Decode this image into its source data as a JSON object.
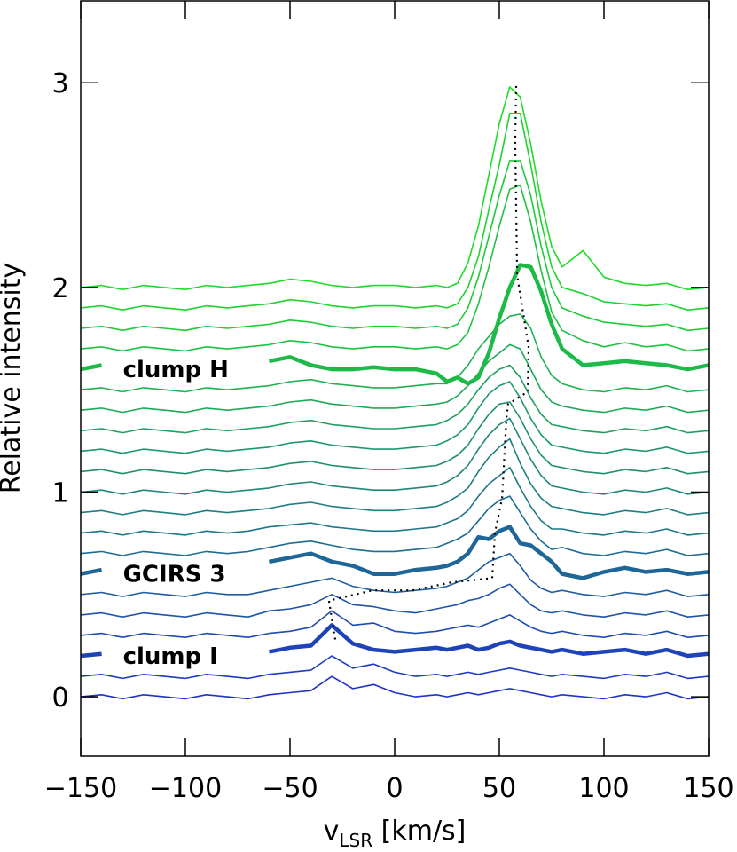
{
  "chart_data": {
    "type": "line",
    "xlabel": {
      "main": "v",
      "sub": "LSR",
      "unit": " [km/s]"
    },
    "ylabel": "Relative intensity",
    "xlim": [
      -150,
      150
    ],
    "ylim": [
      -0.29,
      3.4
    ],
    "xticks": [
      {
        "value": -150,
        "label": "−150"
      },
      {
        "value": -100,
        "label": "−100"
      },
      {
        "value": -50,
        "label": "−50"
      },
      0,
      50,
      100,
      150
    ],
    "yticks": [
      0,
      1,
      2,
      3
    ],
    "x": [
      -150,
      -140,
      -130,
      -120,
      -110,
      -100,
      -90,
      -80,
      -70,
      -60,
      -50,
      -40,
      -30,
      -20,
      -10,
      0,
      10,
      20,
      25,
      30,
      35,
      40,
      45,
      50,
      55,
      60,
      65,
      70,
      75,
      80,
      90,
      100,
      110,
      120,
      130,
      140,
      150
    ],
    "series": [
      {
        "color": "#1e32c8",
        "values": [
          0,
          0.01,
          -0.01,
          0.01,
          0,
          -0.01,
          0.01,
          0,
          -0.01,
          0.01,
          0.02,
          0.03,
          0.1,
          0.04,
          0.06,
          0.02,
          0,
          0.01,
          0,
          0.01,
          0.02,
          0.01,
          0.02,
          0.03,
          0.04,
          0.03,
          0.02,
          0.01,
          0,
          0.01,
          0,
          -0.01,
          0.01,
          0,
          0.02,
          -0.01,
          0
        ]
      },
      {
        "color": "#1e3ac0",
        "values": [
          0.1,
          0.11,
          0.09,
          0.11,
          0.1,
          0.09,
          0.11,
          0.1,
          0.09,
          0.11,
          0.12,
          0.13,
          0.2,
          0.14,
          0.16,
          0.12,
          0.1,
          0.11,
          0.1,
          0.11,
          0.12,
          0.11,
          0.12,
          0.13,
          0.14,
          0.13,
          0.12,
          0.11,
          0.1,
          0.11,
          0.1,
          0.09,
          0.11,
          0.1,
          0.12,
          0.09,
          0.1
        ]
      },
      {
        "name": "clump I",
        "bold": true,
        "color": "#1e43b8",
        "values": [
          0.2,
          0.21,
          null,
          null,
          null,
          null,
          null,
          null,
          null,
          0.22,
          0.24,
          0.25,
          0.35,
          0.26,
          0.23,
          0.22,
          0.23,
          0.24,
          0.23,
          0.24,
          0.25,
          0.23,
          0.24,
          0.26,
          0.27,
          0.25,
          0.24,
          0.23,
          0.22,
          0.23,
          0.21,
          0.22,
          0.23,
          0.21,
          0.23,
          0.2,
          0.21
        ]
      },
      {
        "color": "#1e4bb0",
        "values": [
          0.3,
          0.31,
          0.29,
          0.31,
          0.3,
          0.29,
          0.31,
          0.3,
          0.29,
          0.31,
          0.32,
          0.34,
          0.42,
          0.35,
          0.36,
          0.32,
          0.31,
          0.32,
          0.33,
          0.34,
          0.35,
          0.34,
          0.36,
          0.38,
          0.4,
          0.37,
          0.34,
          0.32,
          0.31,
          0.32,
          0.3,
          0.29,
          0.31,
          0.3,
          0.32,
          0.29,
          0.3
        ]
      },
      {
        "color": "#1e54a8",
        "values": [
          0.4,
          0.41,
          0.39,
          0.41,
          0.4,
          0.39,
          0.41,
          0.4,
          0.39,
          0.42,
          0.43,
          0.45,
          0.5,
          0.45,
          0.44,
          0.42,
          0.41,
          0.43,
          0.44,
          0.45,
          0.47,
          0.48,
          0.5,
          0.53,
          0.55,
          0.5,
          0.45,
          0.42,
          0.41,
          0.42,
          0.4,
          0.39,
          0.41,
          0.4,
          0.42,
          0.39,
          0.4
        ]
      },
      {
        "color": "#1e5ca0",
        "values": [
          0.5,
          0.51,
          0.49,
          0.51,
          0.5,
          0.49,
          0.51,
          0.5,
          0.5,
          0.52,
          0.54,
          0.56,
          0.58,
          0.54,
          0.52,
          0.51,
          0.52,
          0.53,
          0.54,
          0.56,
          0.58,
          0.62,
          0.66,
          0.68,
          0.7,
          0.64,
          0.57,
          0.53,
          0.51,
          0.52,
          0.5,
          0.49,
          0.51,
          0.5,
          0.52,
          0.49,
          0.5
        ]
      },
      {
        "name": "GCIRS 3",
        "bold": true,
        "color": "#1e6598",
        "values": [
          0.6,
          0.62,
          null,
          null,
          null,
          null,
          null,
          null,
          null,
          0.66,
          0.68,
          0.7,
          0.66,
          0.64,
          0.6,
          0.6,
          0.62,
          0.63,
          0.64,
          0.66,
          0.7,
          0.78,
          0.77,
          0.81,
          0.83,
          0.75,
          0.74,
          0.7,
          0.66,
          0.6,
          0.58,
          0.61,
          0.63,
          0.61,
          0.62,
          0.6,
          0.61
        ]
      },
      {
        "color": "#1e6d90",
        "values": [
          0.7,
          0.71,
          0.69,
          0.71,
          0.7,
          0.69,
          0.71,
          0.7,
          0.71,
          0.73,
          0.75,
          0.76,
          0.74,
          0.72,
          0.71,
          0.71,
          0.72,
          0.73,
          0.75,
          0.77,
          0.8,
          0.86,
          0.92,
          0.96,
          0.98,
          0.9,
          0.82,
          0.76,
          0.72,
          0.73,
          0.7,
          0.69,
          0.71,
          0.7,
          0.72,
          0.69,
          0.7
        ]
      },
      {
        "color": "#1e7688",
        "values": [
          0.8,
          0.81,
          0.79,
          0.81,
          0.8,
          0.79,
          0.81,
          0.8,
          0.81,
          0.83,
          0.84,
          0.85,
          0.83,
          0.82,
          0.81,
          0.81,
          0.82,
          0.83,
          0.85,
          0.87,
          0.91,
          0.98,
          1.04,
          1.08,
          1.12,
          1.02,
          0.93,
          0.86,
          0.82,
          0.82,
          0.8,
          0.79,
          0.81,
          0.8,
          0.82,
          0.79,
          0.8
        ]
      },
      {
        "color": "#1e7e80",
        "values": [
          0.9,
          0.91,
          0.89,
          0.91,
          0.9,
          0.89,
          0.91,
          0.9,
          0.91,
          0.92,
          0.94,
          0.95,
          0.93,
          0.92,
          0.91,
          0.91,
          0.92,
          0.93,
          0.95,
          0.98,
          1.02,
          1.1,
          1.17,
          1.22,
          1.26,
          1.14,
          1.04,
          0.97,
          0.93,
          0.92,
          0.9,
          0.89,
          0.91,
          0.9,
          0.92,
          0.89,
          0.9
        ]
      },
      {
        "color": "#1e8778",
        "values": [
          1,
          1.01,
          0.99,
          1.01,
          1,
          0.99,
          1.01,
          1,
          1.01,
          1.02,
          1.04,
          1.05,
          1.03,
          1.02,
          1.01,
          1.01,
          1.02,
          1.03,
          1.05,
          1.08,
          1.13,
          1.21,
          1.28,
          1.33,
          1.36,
          1.26,
          1.16,
          1.08,
          1.03,
          1.02,
          1,
          0.99,
          1.01,
          1,
          1.02,
          0.99,
          1
        ]
      },
      {
        "color": "#1e8f70",
        "values": [
          1.1,
          1.11,
          1.09,
          1.11,
          1.1,
          1.09,
          1.11,
          1.1,
          1.11,
          1.12,
          1.14,
          1.15,
          1.13,
          1.12,
          1.11,
          1.11,
          1.12,
          1.13,
          1.15,
          1.18,
          1.23,
          1.31,
          1.38,
          1.43,
          1.44,
          1.36,
          1.26,
          1.18,
          1.13,
          1.12,
          1.1,
          1.09,
          1.11,
          1.1,
          1.12,
          1.09,
          1.1
        ]
      },
      {
        "color": "#1e9868",
        "values": [
          1.2,
          1.21,
          1.19,
          1.21,
          1.2,
          1.19,
          1.21,
          1.2,
          1.21,
          1.22,
          1.24,
          1.25,
          1.23,
          1.22,
          1.21,
          1.21,
          1.22,
          1.23,
          1.25,
          1.28,
          1.33,
          1.41,
          1.48,
          1.52,
          1.54,
          1.46,
          1.36,
          1.28,
          1.23,
          1.22,
          1.2,
          1.19,
          1.21,
          1.2,
          1.22,
          1.19,
          1.2
        ]
      },
      {
        "color": "#1ea060",
        "values": [
          1.3,
          1.31,
          1.29,
          1.31,
          1.3,
          1.29,
          1.31,
          1.3,
          1.31,
          1.32,
          1.34,
          1.35,
          1.33,
          1.32,
          1.31,
          1.31,
          1.32,
          1.33,
          1.35,
          1.38,
          1.43,
          1.5,
          1.56,
          1.6,
          1.62,
          1.56,
          1.46,
          1.38,
          1.33,
          1.32,
          1.3,
          1.29,
          1.31,
          1.3,
          1.32,
          1.29,
          1.3
        ]
      },
      {
        "color": "#1ea958",
        "values": [
          1.4,
          1.41,
          1.39,
          1.41,
          1.4,
          1.39,
          1.41,
          1.4,
          1.41,
          1.42,
          1.44,
          1.45,
          1.43,
          1.42,
          1.41,
          1.41,
          1.42,
          1.43,
          1.44,
          1.47,
          1.52,
          1.58,
          1.64,
          1.68,
          1.72,
          1.7,
          1.6,
          1.5,
          1.44,
          1.42,
          1.4,
          1.39,
          1.41,
          1.4,
          1.42,
          1.39,
          1.4
        ]
      },
      {
        "color": "#1eb150",
        "values": [
          1.5,
          1.51,
          1.49,
          1.51,
          1.5,
          1.49,
          1.51,
          1.5,
          1.51,
          1.52,
          1.54,
          1.55,
          1.53,
          1.52,
          1.51,
          1.51,
          1.52,
          1.53,
          1.53,
          1.56,
          1.62,
          1.7,
          1.76,
          1.82,
          1.86,
          1.87,
          1.8,
          1.66,
          1.57,
          1.53,
          1.5,
          1.49,
          1.51,
          1.5,
          1.52,
          1.49,
          1.5
        ]
      },
      {
        "name": "clump H",
        "bold": true,
        "color": "#1eba48",
        "values": [
          1.6,
          1.62,
          null,
          null,
          null,
          null,
          null,
          null,
          null,
          1.64,
          1.66,
          1.62,
          1.6,
          1.6,
          1.61,
          1.6,
          1.6,
          1.58,
          1.54,
          1.56,
          1.53,
          1.56,
          1.68,
          1.85,
          2.0,
          2.11,
          2.1,
          1.98,
          1.82,
          1.7,
          1.62,
          1.63,
          1.64,
          1.63,
          1.62,
          1.6,
          1.62
        ]
      },
      {
        "color": "#1ec240",
        "values": [
          1.7,
          1.71,
          1.69,
          1.71,
          1.7,
          1.69,
          1.71,
          1.7,
          1.71,
          1.72,
          1.74,
          1.73,
          1.71,
          1.7,
          1.71,
          1.71,
          1.7,
          1.71,
          1.7,
          1.72,
          1.78,
          1.92,
          2.1,
          2.3,
          2.48,
          2.5,
          2.32,
          2.08,
          1.88,
          1.79,
          1.74,
          1.71,
          1.73,
          1.71,
          1.72,
          1.69,
          1.7
        ]
      },
      {
        "color": "#1ecb38",
        "values": [
          1.8,
          1.81,
          1.79,
          1.81,
          1.8,
          1.79,
          1.81,
          1.8,
          1.81,
          1.82,
          1.84,
          1.83,
          1.81,
          1.8,
          1.81,
          1.81,
          1.8,
          1.81,
          1.8,
          1.82,
          1.9,
          2.05,
          2.25,
          2.45,
          2.62,
          2.62,
          2.45,
          2.2,
          2.0,
          1.9,
          1.86,
          1.83,
          1.82,
          1.81,
          1.82,
          1.79,
          1.8
        ]
      },
      {
        "color": "#1ed330",
        "values": [
          1.9,
          1.91,
          1.89,
          1.91,
          1.9,
          1.89,
          1.91,
          1.9,
          1.91,
          1.92,
          1.94,
          1.93,
          1.91,
          1.9,
          1.91,
          1.91,
          1.9,
          1.91,
          1.9,
          1.92,
          2.0,
          2.15,
          2.38,
          2.6,
          2.85,
          2.85,
          2.6,
          2.32,
          2.1,
          2.0,
          1.97,
          1.93,
          1.92,
          1.91,
          1.92,
          1.89,
          1.9
        ]
      },
      {
        "color": "#1edc28",
        "values": [
          2,
          2.01,
          1.99,
          2.01,
          2,
          1.99,
          2.01,
          2,
          2.01,
          2.02,
          2.04,
          2.03,
          2.01,
          2,
          2.01,
          2.01,
          2,
          2.01,
          2,
          2.02,
          2.12,
          2.3,
          2.55,
          2.8,
          2.98,
          2.93,
          2.7,
          2.42,
          2.2,
          2.1,
          2.18,
          2.05,
          2.02,
          2.01,
          2.02,
          1.99,
          2
        ]
      }
    ],
    "peak_trace": {
      "color": "#000000",
      "x": [
        -28.4,
        -31.4,
        -10.6,
        8.5,
        27.5,
        46.6,
        47.9,
        51.3,
        53.4,
        54.2,
        63.6,
        64.0,
        58.5,
        57.6,
        58.1
      ],
      "values": [
        0.28,
        0.47,
        0.52,
        0.52,
        0.56,
        0.58,
        0.8,
        0.97,
        1.36,
        1.43,
        1.49,
        1.71,
        2.06,
        2.71,
        3.0
      ]
    }
  }
}
